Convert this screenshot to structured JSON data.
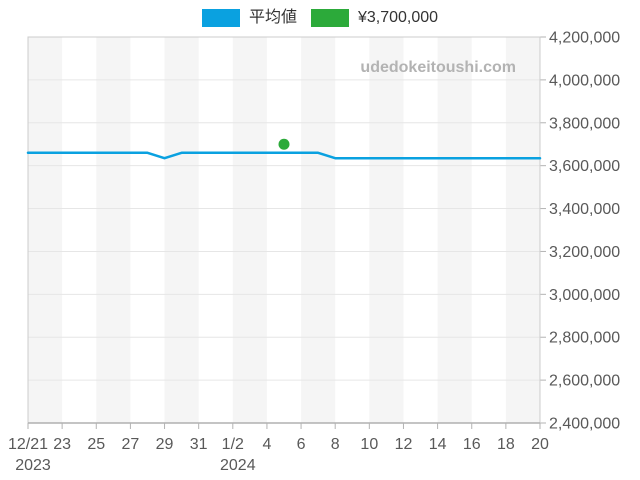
{
  "legend": {
    "items": [
      {
        "label": "平均値",
        "color": "#0aa1e0"
      },
      {
        "label": "¥3,700,000",
        "color": "#2caa3a"
      }
    ]
  },
  "chart_data": {
    "type": "line",
    "title": "",
    "watermark": "udedokeitoushi.com",
    "x_tick_labels": [
      "12/21",
      "23",
      "25",
      "27",
      "29",
      "31",
      "1/2",
      "4",
      "6",
      "8",
      "10",
      "12",
      "14",
      "16",
      "18",
      "20"
    ],
    "x_sub_labels": [
      {
        "tick_index": 0,
        "label": "2023"
      },
      {
        "tick_index": 6,
        "label": "2024"
      }
    ],
    "dates": [
      "12/21",
      "12/22",
      "12/23",
      "12/24",
      "12/25",
      "12/26",
      "12/27",
      "12/28",
      "12/29",
      "12/30",
      "12/31",
      "1/1",
      "1/2",
      "1/3",
      "1/4",
      "1/5",
      "1/6",
      "1/7",
      "1/8",
      "1/9",
      "1/10",
      "1/11",
      "1/12",
      "1/13",
      "1/14",
      "1/15",
      "1/16",
      "1/17",
      "1/18",
      "1/19",
      "1/20"
    ],
    "series": [
      {
        "name": "平均値",
        "color": "#0aa1e0",
        "values": [
          3660000,
          3660000,
          3660000,
          3660000,
          3660000,
          3660000,
          3660000,
          3660000,
          3635000,
          3660000,
          3660000,
          3660000,
          3660000,
          3660000,
          3660000,
          3660000,
          3660000,
          3660000,
          3635000,
          3635000,
          3635000,
          3635000,
          3635000,
          3635000,
          3635000,
          3635000,
          3635000,
          3635000,
          3635000,
          3635000,
          3635000
        ]
      }
    ],
    "marker": {
      "date": "1/5",
      "value": 3700000,
      "color": "#2caa3a",
      "legend_label": "¥3,700,000"
    },
    "y_ticks": [
      2400000,
      2600000,
      2800000,
      3000000,
      3200000,
      3400000,
      3600000,
      3800000,
      4000000,
      4200000
    ],
    "ylim": [
      2400000,
      4200000
    ],
    "xlabel": "",
    "ylabel": "",
    "grid": "horizontal",
    "plot_bands": "alternating-vertical-2day",
    "legend_position": "top-center",
    "y_axis_side": "right"
  }
}
